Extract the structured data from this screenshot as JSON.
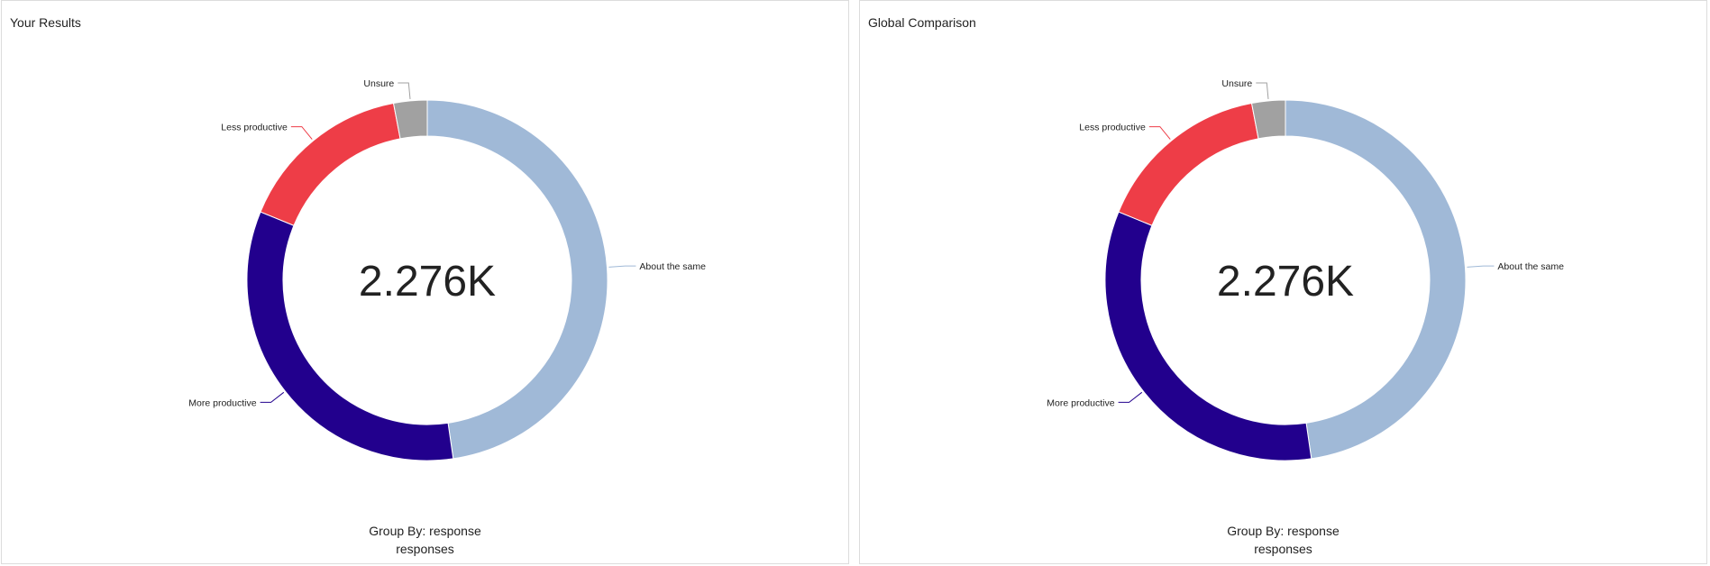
{
  "chart_data": [
    {
      "type": "pie",
      "title": "Your Results",
      "center_value": "2.276K",
      "caption_line1": "Group By: response",
      "caption_line2": "responses",
      "slices": [
        {
          "label": "About the same",
          "value": 0.477,
          "color": "#a0b9d7"
        },
        {
          "label": "More productive",
          "value": 0.335,
          "color": "#22008d"
        },
        {
          "label": "Less productive",
          "value": 0.158,
          "color": "#ee3d47"
        },
        {
          "label": "Unsure",
          "value": 0.03,
          "color": "#a1a1a1"
        }
      ]
    },
    {
      "type": "pie",
      "title": "Global Comparison",
      "center_value": "2.276K",
      "caption_line1": "Group By: response",
      "caption_line2": "responses",
      "slices": [
        {
          "label": "About the same",
          "value": 0.477,
          "color": "#a0b9d7"
        },
        {
          "label": "More productive",
          "value": 0.335,
          "color": "#22008d"
        },
        {
          "label": "Less productive",
          "value": 0.158,
          "color": "#ee3d47"
        },
        {
          "label": "Unsure",
          "value": 0.03,
          "color": "#a1a1a1"
        }
      ]
    }
  ]
}
